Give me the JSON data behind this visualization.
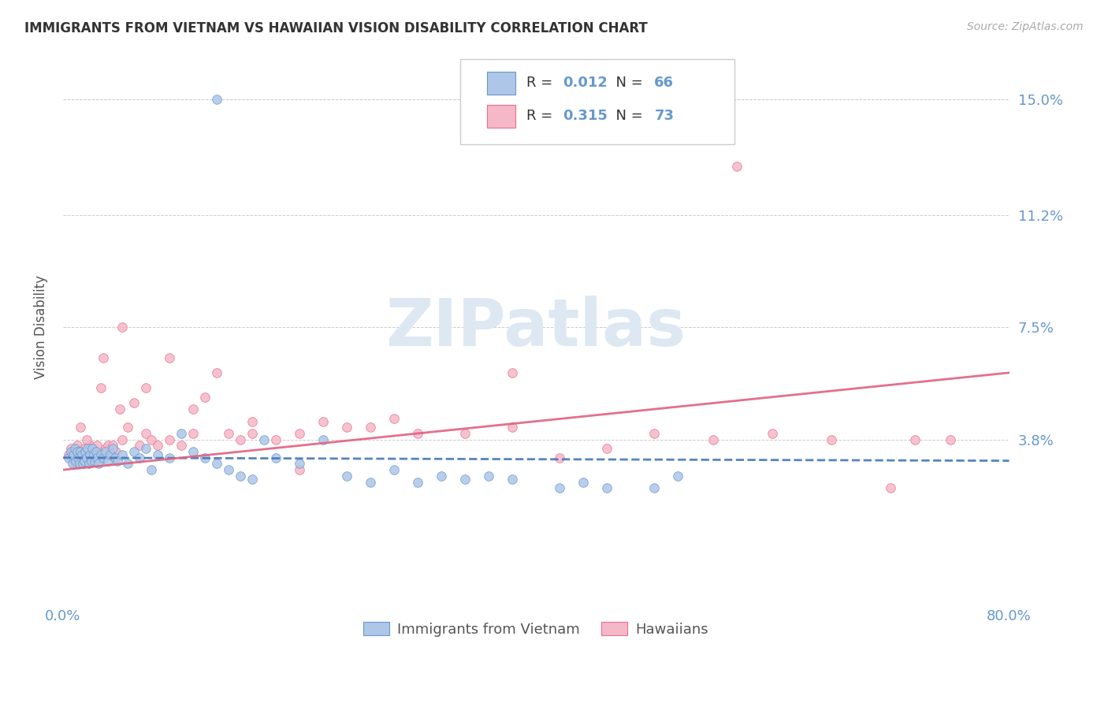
{
  "title": "IMMIGRANTS FROM VIETNAM VS HAWAIIAN VISION DISABILITY CORRELATION CHART",
  "source": "Source: ZipAtlas.com",
  "ylabel": "Vision Disability",
  "yticks": [
    0.038,
    0.075,
    0.112,
    0.15
  ],
  "ytick_labels": [
    "3.8%",
    "7.5%",
    "11.2%",
    "15.0%"
  ],
  "xlim": [
    0.0,
    0.8
  ],
  "ylim": [
    -0.015,
    0.165
  ],
  "R_blue": "0.012",
  "N_blue": "66",
  "R_pink": "0.315",
  "N_pink": "73",
  "blue_fill": "#aec6e8",
  "pink_fill": "#f5b8c8",
  "blue_edge": "#6699cc",
  "pink_edge": "#e8708a",
  "blue_line": "#4477bb",
  "pink_line": "#e06080",
  "axis_tick_color": "#6699cc",
  "title_color": "#333333",
  "source_color": "#aaaaaa",
  "ylabel_color": "#555555",
  "legend_label_blue": "Immigrants from Vietnam",
  "legend_label_pink": "Hawaiians",
  "watermark_text": "ZIPatlas",
  "watermark_color": "#dde8f2",
  "grid_color": "#cccccc",
  "blue_trend_start_y": 0.032,
  "blue_trend_end_y": 0.031,
  "pink_trend_start_y": 0.028,
  "pink_trend_end_y": 0.06,
  "blue_x": [
    0.005,
    0.007,
    0.008,
    0.009,
    0.01,
    0.011,
    0.012,
    0.013,
    0.014,
    0.015,
    0.016,
    0.017,
    0.018,
    0.019,
    0.02,
    0.021,
    0.022,
    0.023,
    0.024,
    0.025,
    0.026,
    0.027,
    0.028,
    0.029,
    0.03,
    0.032,
    0.034,
    0.036,
    0.038,
    0.04,
    0.042,
    0.044,
    0.046,
    0.05,
    0.055,
    0.06,
    0.065,
    0.07,
    0.075,
    0.08,
    0.09,
    0.1,
    0.11,
    0.12,
    0.13,
    0.14,
    0.15,
    0.16,
    0.17,
    0.18,
    0.2,
    0.22,
    0.24,
    0.26,
    0.28,
    0.3,
    0.32,
    0.34,
    0.36,
    0.38,
    0.42,
    0.44,
    0.46,
    0.5,
    0.52,
    0.13
  ],
  "blue_y": [
    0.032,
    0.034,
    0.03,
    0.033,
    0.035,
    0.031,
    0.034,
    0.032,
    0.03,
    0.034,
    0.033,
    0.03,
    0.031,
    0.034,
    0.032,
    0.035,
    0.03,
    0.033,
    0.031,
    0.035,
    0.033,
    0.031,
    0.034,
    0.032,
    0.03,
    0.033,
    0.032,
    0.034,
    0.031,
    0.033,
    0.035,
    0.032,
    0.031,
    0.033,
    0.03,
    0.034,
    0.032,
    0.035,
    0.028,
    0.033,
    0.032,
    0.04,
    0.034,
    0.032,
    0.03,
    0.028,
    0.026,
    0.025,
    0.038,
    0.032,
    0.03,
    0.038,
    0.026,
    0.024,
    0.028,
    0.024,
    0.026,
    0.025,
    0.026,
    0.025,
    0.022,
    0.024,
    0.022,
    0.022,
    0.026,
    0.15
  ],
  "pink_x": [
    0.005,
    0.007,
    0.008,
    0.009,
    0.01,
    0.012,
    0.013,
    0.015,
    0.017,
    0.018,
    0.019,
    0.02,
    0.022,
    0.023,
    0.024,
    0.025,
    0.026,
    0.027,
    0.028,
    0.029,
    0.03,
    0.032,
    0.034,
    0.036,
    0.038,
    0.04,
    0.042,
    0.045,
    0.048,
    0.05,
    0.055,
    0.06,
    0.065,
    0.07,
    0.075,
    0.08,
    0.09,
    0.1,
    0.11,
    0.12,
    0.13,
    0.14,
    0.15,
    0.16,
    0.18,
    0.2,
    0.22,
    0.24,
    0.26,
    0.28,
    0.3,
    0.34,
    0.38,
    0.42,
    0.46,
    0.5,
    0.55,
    0.6,
    0.65,
    0.7,
    0.72,
    0.75,
    0.57,
    0.38,
    0.2,
    0.16,
    0.11,
    0.09,
    0.07,
    0.05,
    0.03,
    0.02,
    0.015
  ],
  "pink_y": [
    0.033,
    0.035,
    0.032,
    0.034,
    0.03,
    0.036,
    0.033,
    0.034,
    0.032,
    0.035,
    0.033,
    0.032,
    0.034,
    0.036,
    0.033,
    0.035,
    0.032,
    0.034,
    0.033,
    0.036,
    0.031,
    0.055,
    0.065,
    0.035,
    0.036,
    0.034,
    0.036,
    0.034,
    0.048,
    0.038,
    0.042,
    0.05,
    0.036,
    0.04,
    0.038,
    0.036,
    0.038,
    0.036,
    0.048,
    0.052,
    0.06,
    0.04,
    0.038,
    0.044,
    0.038,
    0.04,
    0.044,
    0.042,
    0.042,
    0.045,
    0.04,
    0.04,
    0.042,
    0.032,
    0.035,
    0.04,
    0.038,
    0.04,
    0.038,
    0.022,
    0.038,
    0.038,
    0.128,
    0.06,
    0.028,
    0.04,
    0.04,
    0.065,
    0.055,
    0.075,
    0.032,
    0.038,
    0.042
  ]
}
